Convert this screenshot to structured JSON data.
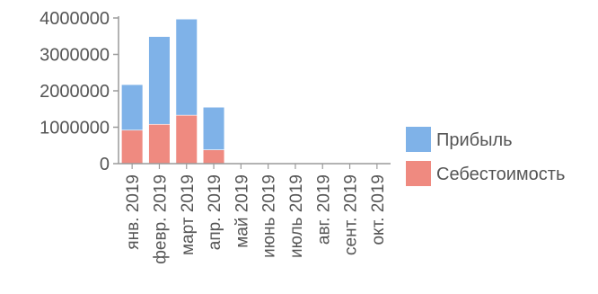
{
  "chart_data": {
    "type": "bar",
    "stacked": true,
    "categories": [
      "янв. 2019",
      "февр. 2019",
      "март 2019",
      "апр. 2019",
      "май 2019",
      "июнь 2019",
      "июль 2019",
      "авг. 2019",
      "сент. 2019",
      "окт. 2019"
    ],
    "series": [
      {
        "name": "Себестоимость",
        "color": "#ef8a80",
        "values": [
          920000,
          1080000,
          1330000,
          380000,
          0,
          0,
          0,
          0,
          0,
          0
        ]
      },
      {
        "name": "Прибыль",
        "color": "#7fb2e8",
        "values": [
          1250000,
          2410000,
          2640000,
          1170000,
          0,
          0,
          0,
          0,
          0,
          0
        ]
      }
    ],
    "y_ticks": [
      "0",
      "1000000",
      "2000000",
      "3000000",
      "4000000"
    ],
    "ylim": [
      0,
      4000000
    ],
    "grid": false,
    "legend": {
      "position": "right",
      "items": [
        "Прибыль",
        "Себестоимость"
      ]
    },
    "title": "",
    "xlabel": "",
    "ylabel": ""
  }
}
